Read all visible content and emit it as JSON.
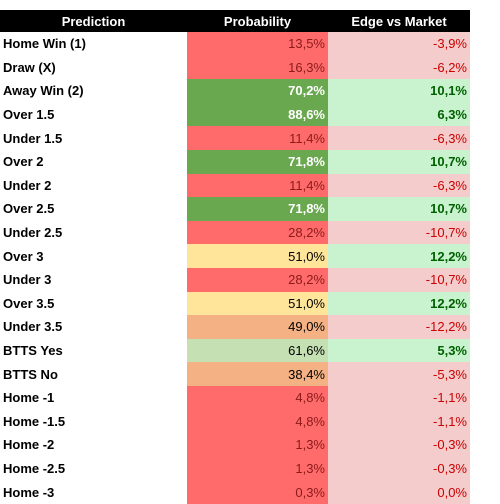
{
  "table": {
    "header": [
      "Prediction",
      "Probability",
      "Edge vs Market"
    ],
    "rows": [
      [
        "Home Win (1)",
        "13,5%",
        "-3,9%"
      ],
      [
        "Draw (X)",
        "16,3%",
        "-6,2%"
      ],
      [
        "Away Win (2)",
        "70,2%",
        "10,1%"
      ],
      [
        "Over 1.5",
        "88,6%",
        "6,3%"
      ],
      [
        "Under 1.5",
        "11,4%",
        "-6,3%"
      ],
      [
        "Over 2",
        "71,8%",
        "10,7%"
      ],
      [
        "Under 2",
        "11,4%",
        "-6,3%"
      ],
      [
        "Over 2.5",
        "71,8%",
        "10,7%"
      ],
      [
        "Under 2.5",
        "28,2%",
        "-10,7%"
      ],
      [
        "Over 3",
        "51,0%",
        "12,2%"
      ],
      [
        "Under 3",
        "28,2%",
        "-10,7%"
      ],
      [
        "Over 3.5",
        "51,0%",
        "12,2%"
      ],
      [
        "Under 3.5",
        "49,0%",
        "-12,2%"
      ],
      [
        "BTTS Yes",
        "61,6%",
        "5,3%"
      ],
      [
        "BTTS No",
        "38,4%",
        "-5,3%"
      ],
      [
        "Home -1",
        "4,8%",
        "-1,1%"
      ],
      [
        "Home -1.5",
        "4,8%",
        "-1,1%"
      ],
      [
        "Home -2",
        "1,3%",
        "-0,3%"
      ],
      [
        "Home -2.5",
        "1,3%",
        "-0,3%"
      ],
      [
        "Home -3",
        "0,3%",
        "0,0%"
      ]
    ],
    "prob_colors": [
      "#ff6b6b",
      "#ff6b6b",
      "#6aa84f",
      "#6aa84f",
      "#ff6b6b",
      "#6aa84f",
      "#ff6b6b",
      "#6aa84f",
      "#ff6b6b",
      "#ffe599",
      "#ff6b6b",
      "#ffe599",
      "#f4b183",
      "#c5e0b3",
      "#f4b183",
      "#ff6b6b",
      "#ff6b6b",
      "#ff6b6b",
      "#ff6b6b",
      "#ff6b6b"
    ],
    "edge_colors": [
      "#f4cccc",
      "#f4cccc",
      "#c9f2cf",
      "#c9f2cf",
      "#f4cccc",
      "#c9f2cf",
      "#f4cccc",
      "#c9f2cf",
      "#f4cccc",
      "#c9f2cf",
      "#f4cccc",
      "#c9f2cf",
      "#f4cccc",
      "#c9f2cf",
      "#f4cccc",
      "#f4cccc",
      "#f4cccc",
      "#f4cccc",
      "#f4cccc",
      "#f4cccc"
    ]
  }
}
